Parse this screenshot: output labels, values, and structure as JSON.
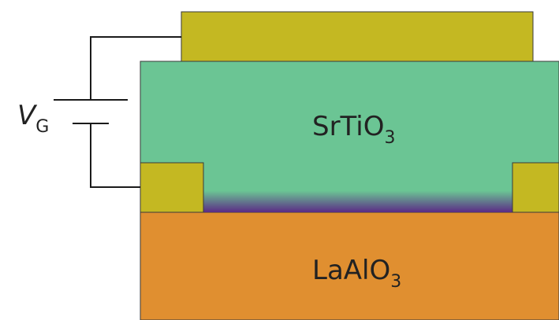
{
  "labels": {
    "gate_voltage": {
      "main": "V",
      "sub": "G"
    },
    "top_layer": {
      "main": "SrTiO",
      "sub": "3"
    },
    "substrate": {
      "main": "LaAlO",
      "sub": "3"
    }
  },
  "colors": {
    "electrode": "#c4b822",
    "srtio3": "#6bc594",
    "laalo3": "#e08f30",
    "channel_top": "#6bc594",
    "channel_bottom": "#5b2a86",
    "wire": "#1a1a1a"
  }
}
